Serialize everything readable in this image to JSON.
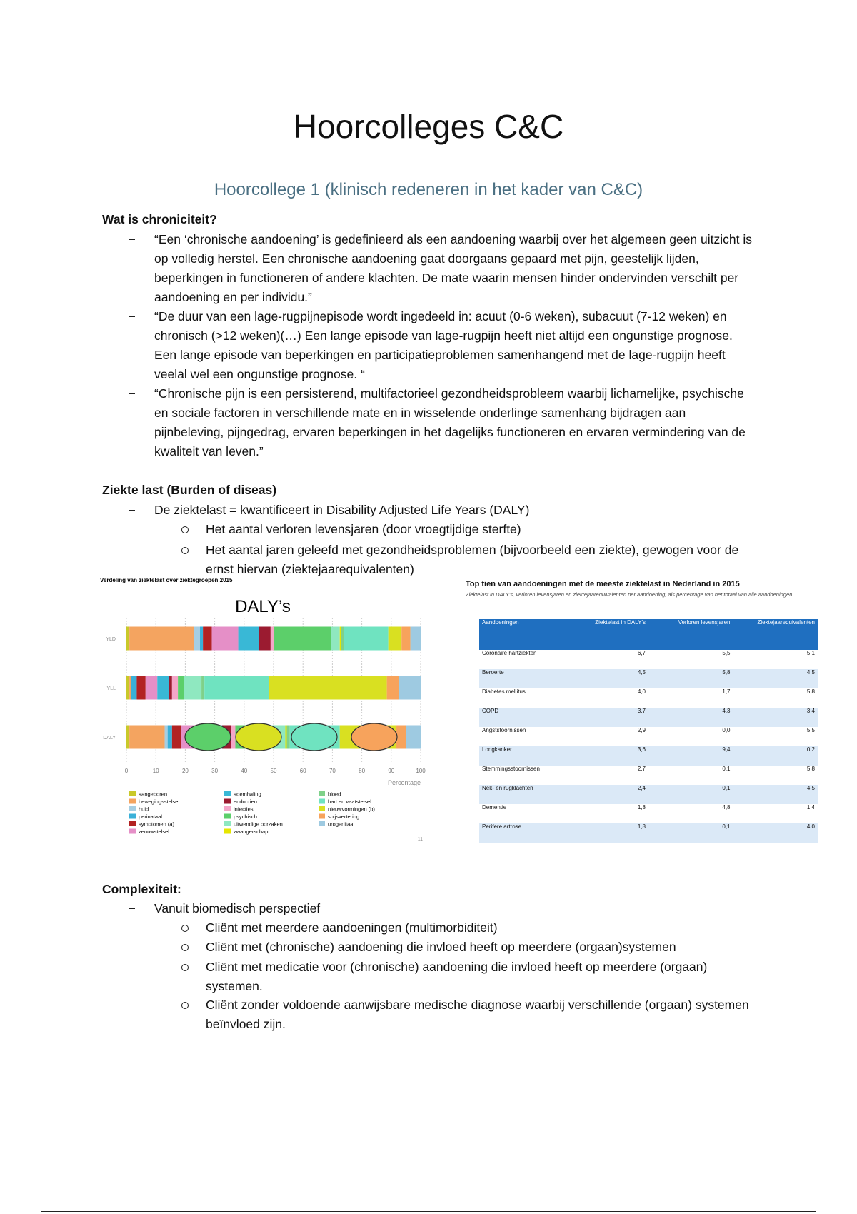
{
  "header": {
    "title": "Hoorcolleges C&C",
    "subtitle": "Hoorcollege 1 (klinisch redeneren in het kader van C&C)"
  },
  "sections": [
    {
      "heading": "Wat is chroniciteit?",
      "bullets": [
        {
          "text": "“Een ‘chronische aandoening’ is gedefinieerd als een aandoening waarbij over het algemeen geen uitzicht is op volledig herstel. Een chronische aandoening gaat doorgaans gepaard met pijn, geestelijk lijden, beperkingen in functioneren of andere klachten. De mate waarin mensen hinder ondervinden verschilt per aandoening en per individu.”"
        },
        {
          "text": "“De duur van een lage-rugpijnepisode wordt ingedeeld in: acuut (0-6 weken), subacuut (7-12 weken) en chronisch (>12 weken)(…) Een lange episode van lage-rugpijn heeft niet altijd een ongunstige prognose. Een lange episode van beperkingen en participatieproblemen samenhangend met de lage-rugpijn heeft veelal wel een ongunstige prognose. “"
        },
        {
          "text": "“Chronische pijn is een persisterend, multifactorieel gezondheidsprobleem waarbij lichamelijke, psychische en sociale factoren in verschillende mate en in wisselende onderlinge samenhang bijdragen aan pijnbeleving, pijngedrag, ervaren beperkingen in het dagelijks functioneren en ervaren vermindering van de kwaliteit van leven.”"
        }
      ]
    },
    {
      "heading": "Ziekte last (Burden of diseas)",
      "bullets": [
        {
          "text": "De ziektelast = kwantificeert in Disability Adjusted Life Years (DALY)",
          "subitems": [
            "Het aantal verloren levensjaren (door vroegtijdige sterfte)",
            "Het aantal jaren geleefd met gezondheidsproblemen (bijvoorbeeld een ziekte), gewogen voor de ernst hiervan (ziektejaarequivalenten)"
          ]
        }
      ]
    },
    {
      "heading": "Complexiteit:",
      "bullets": [
        {
          "text": "Vanuit biomedisch perspectief",
          "subitems": [
            "Cliënt met meerdere aandoeningen (multimorbiditeit)",
            "Cliënt met (chronische) aandoening die invloed heeft op meerdere (orgaan)systemen",
            "Cliënt met medicatie voor (chronische) aandoening die invloed heeft op meerdere (orgaan) systemen.",
            "Cliënt zonder voldoende aanwijsbare medische diagnose waarbij verschillende (orgaan) systemen beïnvloed zijn."
          ]
        }
      ]
    }
  ],
  "chart_data": {
    "type": "bar",
    "orientation": "horizontal",
    "stacked": true,
    "caption": "Verdeling van ziektelast over ziektegroepen 2015",
    "title": "DALY’s",
    "categories": [
      "YLD",
      "YLL",
      "DALY"
    ],
    "series": [
      {
        "name": "aangeboren",
        "color": "#c9c92a",
        "values": [
          1,
          1,
          1
        ]
      },
      {
        "name": "bewegingsstelsel",
        "color": "#f4a460",
        "values": [
          22,
          0.5,
          12
        ]
      },
      {
        "name": "huid",
        "color": "#a6cee3",
        "values": [
          2,
          0,
          1
        ]
      },
      {
        "name": "perinataal",
        "color": "#3ab0d8",
        "values": [
          1,
          2,
          1.5
        ]
      },
      {
        "name": "symptomen (a)",
        "color": "#b22222",
        "values": [
          3,
          3,
          3
        ]
      },
      {
        "name": "zenuwstelsel",
        "color": "#e58fc7",
        "values": [
          9,
          4,
          8
        ]
      },
      {
        "name": "ademhaling",
        "color": "#39b8d6",
        "values": [
          7,
          4,
          6
        ]
      },
      {
        "name": "endocrien",
        "color": "#9b1b30",
        "values": [
          4,
          1,
          3
        ]
      },
      {
        "name": "infecties",
        "color": "#f4a6c8",
        "values": [
          1,
          2,
          1.5
        ]
      },
      {
        "name": "psychisch",
        "color": "#5ccf6a",
        "values": [
          19.5,
          2,
          12
        ]
      },
      {
        "name": "uitwendige oorzaken",
        "color": "#8fe8c0",
        "values": [
          3,
          6,
          5
        ]
      },
      {
        "name": "zwangerschap",
        "color": "#e6e600",
        "values": [
          0.5,
          0,
          0.5
        ]
      },
      {
        "name": "bloed",
        "color": "#7fd18a",
        "values": [
          1,
          1,
          1
        ]
      },
      {
        "name": "hart en vaatstelsel",
        "color": "#6fe3c0",
        "values": [
          15,
          22,
          17
        ]
      },
      {
        "name": "nieuwvormingen (b)",
        "color": "#d9e021",
        "values": [
          4.5,
          40,
          19
        ]
      },
      {
        "name": "spijsvertering",
        "color": "#f7a35c",
        "values": [
          3,
          4,
          3.5
        ]
      },
      {
        "name": "urogenitaal",
        "color": "#9ecae1",
        "values": [
          3.5,
          7.5,
          5
        ]
      }
    ],
    "xlim": [
      0,
      100
    ],
    "xticks": [
      0,
      10,
      20,
      30,
      40,
      50,
      60,
      70,
      80,
      90,
      100
    ],
    "xlabel": "Percentage",
    "grid": true,
    "slide_number": "11"
  },
  "table": {
    "title": "Top tien van aandoeningen met de meeste ziektelast in Nederland in 2015",
    "subtitle": "Ziektelast in DALY's, verloren levensjaren en ziektejaarequivalenten per aandoening, als percentage van het totaal van alle aandoeningen",
    "columns": [
      "Aandoeningen",
      "Ziektelast in DALY's",
      "Verloren levensjaren",
      "Ziektejaarequivalenten"
    ],
    "rows": [
      [
        "Coronaire hartziekten",
        "6,7",
        "5,5",
        "5,1"
      ],
      [
        "Beroerte",
        "4,5",
        "5,8",
        "4,5"
      ],
      [
        "Diabetes mellitus",
        "4,0",
        "1,7",
        "5,8"
      ],
      [
        "COPD",
        "3,7",
        "4,3",
        "3,4"
      ],
      [
        "Angststoornissen",
        "2,9",
        "0,0",
        "5,5"
      ],
      [
        "Longkanker",
        "3,6",
        "9,4",
        "0,2"
      ],
      [
        "Stemmingsstoornissen",
        "2,7",
        "0,1",
        "5,8"
      ],
      [
        "Nek- en rugklachten",
        "2,4",
        "0,1",
        "4,5"
      ],
      [
        "Dementie",
        "1,8",
        "4,8",
        "1,4"
      ],
      [
        "Perifere artrose",
        "1,8",
        "0,1",
        "4,0"
      ]
    ]
  }
}
